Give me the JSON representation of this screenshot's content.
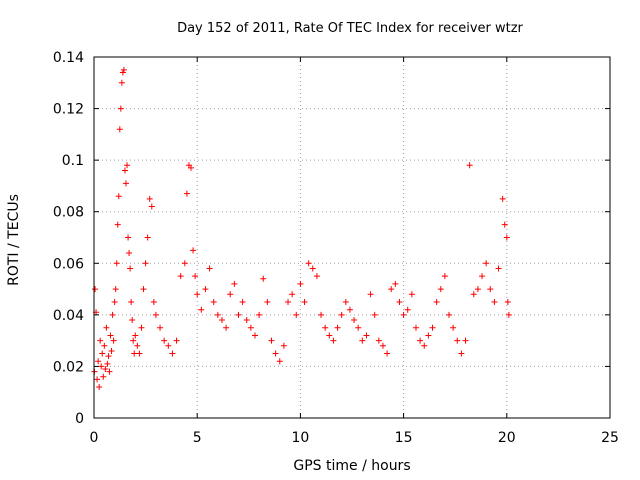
{
  "chart_data": {
    "type": "scatter",
    "title": "Day 152 of 2011, Rate Of TEC Index for receiver wtzr",
    "xlabel": "GPS time / hours",
    "ylabel": "ROTI / TECUs",
    "xlim": [
      0,
      25
    ],
    "ylim": [
      0,
      0.14
    ],
    "xticks": [
      "0",
      "5",
      "10",
      "15",
      "20",
      "25"
    ],
    "yticks": [
      "0",
      "0.02",
      "0.04",
      "0.06",
      "0.08",
      "0.1",
      "0.12",
      "0.14"
    ],
    "grid": true,
    "marker": "+",
    "series": [
      {
        "color": "#ff0000",
        "x": [
          0.02,
          0.05,
          0.1,
          0.15,
          0.2,
          0.25,
          0.3,
          0.35,
          0.4,
          0.45,
          0.5,
          0.55,
          0.6,
          0.65,
          0.7,
          0.75,
          0.8,
          0.85,
          0.9,
          0.95,
          1.0,
          1.05,
          1.1,
          1.15,
          1.2,
          1.25,
          1.3,
          1.35,
          1.4,
          1.45,
          1.5,
          1.55,
          1.6,
          1.65,
          1.7,
          1.75,
          1.8,
          1.85,
          1.9,
          1.95,
          2.0,
          2.1,
          2.2,
          2.3,
          2.4,
          2.5,
          2.6,
          2.7,
          2.8,
          2.9,
          3.0,
          3.2,
          3.4,
          3.6,
          3.8,
          4.0,
          4.2,
          4.4,
          4.5,
          4.6,
          4.7,
          4.8,
          4.9,
          5.0,
          5.2,
          5.4,
          5.6,
          5.8,
          6.0,
          6.2,
          6.4,
          6.6,
          6.8,
          7.0,
          7.2,
          7.4,
          7.6,
          7.8,
          8.0,
          8.2,
          8.4,
          8.6,
          8.8,
          9.0,
          9.2,
          9.4,
          9.6,
          9.8,
          10.0,
          10.2,
          10.4,
          10.6,
          10.8,
          11.0,
          11.2,
          11.4,
          11.6,
          11.8,
          12.0,
          12.2,
          12.4,
          12.6,
          12.8,
          13.0,
          13.2,
          13.4,
          13.6,
          13.8,
          14.0,
          14.2,
          14.4,
          14.6,
          14.8,
          15.0,
          15.2,
          15.4,
          15.6,
          15.8,
          16.0,
          16.2,
          16.4,
          16.6,
          16.8,
          17.0,
          17.2,
          17.4,
          17.6,
          17.8,
          18.0,
          18.2,
          18.4,
          18.6,
          18.8,
          19.0,
          19.2,
          19.4,
          19.6,
          19.8,
          19.9,
          20.0,
          20.05,
          20.1
        ],
        "y": [
          0.018,
          0.05,
          0.041,
          0.015,
          0.022,
          0.012,
          0.03,
          0.02,
          0.025,
          0.016,
          0.028,
          0.019,
          0.035,
          0.021,
          0.024,
          0.018,
          0.032,
          0.026,
          0.04,
          0.03,
          0.045,
          0.05,
          0.06,
          0.075,
          0.086,
          0.112,
          0.12,
          0.13,
          0.134,
          0.135,
          0.096,
          0.091,
          0.098,
          0.07,
          0.064,
          0.058,
          0.045,
          0.038,
          0.03,
          0.025,
          0.032,
          0.028,
          0.025,
          0.035,
          0.05,
          0.06,
          0.07,
          0.085,
          0.082,
          0.045,
          0.04,
          0.035,
          0.03,
          0.028,
          0.025,
          0.03,
          0.055,
          0.06,
          0.087,
          0.098,
          0.097,
          0.065,
          0.055,
          0.048,
          0.042,
          0.05,
          0.058,
          0.045,
          0.04,
          0.038,
          0.035,
          0.048,
          0.052,
          0.04,
          0.045,
          0.038,
          0.035,
          0.032,
          0.04,
          0.054,
          0.045,
          0.03,
          0.025,
          0.022,
          0.028,
          0.045,
          0.048,
          0.04,
          0.052,
          0.045,
          0.06,
          0.058,
          0.055,
          0.04,
          0.035,
          0.032,
          0.03,
          0.035,
          0.04,
          0.045,
          0.042,
          0.038,
          0.035,
          0.03,
          0.032,
          0.048,
          0.04,
          0.03,
          0.028,
          0.025,
          0.05,
          0.052,
          0.045,
          0.04,
          0.042,
          0.048,
          0.035,
          0.03,
          0.028,
          0.032,
          0.035,
          0.045,
          0.05,
          0.055,
          0.04,
          0.035,
          0.03,
          0.025,
          0.03,
          0.098,
          0.048,
          0.05,
          0.055,
          0.06,
          0.05,
          0.045,
          0.058,
          0.085,
          0.075,
          0.07,
          0.045,
          0.04
        ]
      }
    ]
  }
}
